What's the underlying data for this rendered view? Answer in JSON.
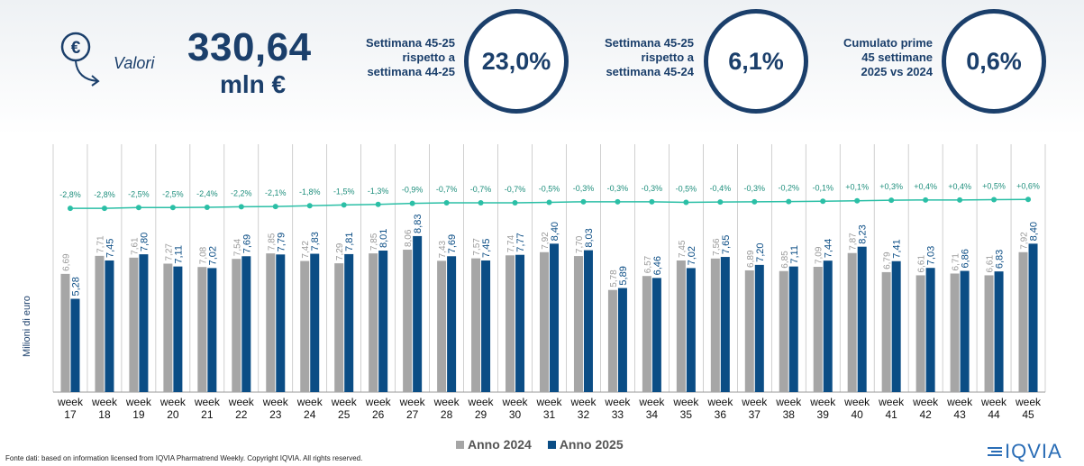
{
  "header": {
    "icon": "euro-coin-arrow-down-icon",
    "icon_glyph": "€",
    "valori_label": "Valori",
    "big_value": "330,64",
    "big_unit": "mln €"
  },
  "kpis": [
    {
      "label_lines": [
        "Settimana 45-25",
        "rispetto a",
        "settimana 44-25"
      ],
      "value": "23,0%"
    },
    {
      "label_lines": [
        "Settimana 45-25",
        "rispetto a",
        "settimana 45-24"
      ],
      "value": "6,1%"
    },
    {
      "label_lines": [
        "Cumulato prime",
        "45 settimane",
        "2025 vs 2024"
      ],
      "value": "0,6%"
    }
  ],
  "colors": {
    "anno2024": "#a6a6a6",
    "anno2025": "#0b4d85",
    "line": "#2bbfa6",
    "text_dark": "#1b3f6b"
  },
  "chart_data": {
    "type": "bar",
    "ylabel": "Milioni di euro",
    "categories": [
      "week 17",
      "week 18",
      "week 19",
      "week 20",
      "week 21",
      "week 22",
      "week 23",
      "week 24",
      "week 25",
      "week 26",
      "week 27",
      "week 28",
      "week 29",
      "week 30",
      "week 31",
      "week 32",
      "week 33",
      "week 34",
      "week 35",
      "week 36",
      "week 37",
      "week 38",
      "week 39",
      "week 40",
      "week 41",
      "week 42",
      "week 43",
      "week 44",
      "week 45"
    ],
    "series": [
      {
        "name": "Anno 2024",
        "labels": [
          "6,69",
          "7,71",
          "7,61",
          "7,27",
          "7,08",
          "7,54",
          "7,85",
          "7,42",
          "7,29",
          "7,85",
          "8,06",
          "7,43",
          "7,57",
          "7,74",
          "7,92",
          "7,70",
          "5,78",
          "6,57",
          "7,45",
          "7,56",
          "6,89",
          "6,85",
          "7,09",
          "7,87",
          "6,79",
          "6,61",
          "6,71",
          "6,61",
          "7,92"
        ],
        "values": [
          6.69,
          7.71,
          7.61,
          7.27,
          7.08,
          7.54,
          7.85,
          7.42,
          7.29,
          7.85,
          8.06,
          7.43,
          7.57,
          7.74,
          7.92,
          7.7,
          5.78,
          6.57,
          7.45,
          7.56,
          6.89,
          6.85,
          7.09,
          7.87,
          6.79,
          6.61,
          6.71,
          6.61,
          7.92
        ]
      },
      {
        "name": "Anno 2025",
        "labels": [
          "5,28",
          "7,45",
          "7,80",
          "7,11",
          "7,02",
          "7,69",
          "7,79",
          "7,83",
          "7,81",
          "8,01",
          "8,83",
          "7,69",
          "7,45",
          "7,77",
          "8,40",
          "8,03",
          "5,89",
          "6,46",
          "7,02",
          "7,65",
          "7,20",
          "7,11",
          "7,44",
          "8,23",
          "7,41",
          "7,03",
          "6,86",
          "6,83",
          "8,40"
        ],
        "values": [
          5.28,
          7.45,
          7.8,
          7.11,
          7.02,
          7.69,
          7.79,
          7.83,
          7.81,
          8.01,
          8.83,
          7.69,
          7.45,
          7.77,
          8.4,
          8.03,
          5.89,
          6.46,
          7.02,
          7.65,
          7.2,
          7.11,
          7.44,
          8.23,
          7.41,
          7.03,
          6.86,
          6.83,
          8.4
        ]
      }
    ],
    "cumulative_change": {
      "labels": [
        "-2,8%",
        "-2,8%",
        "-2,5%",
        "-2,5%",
        "-2,4%",
        "-2,2%",
        "-2,1%",
        "-1,8%",
        "-1,5%",
        "-1,3%",
        "-0,9%",
        "-0,7%",
        "-0,7%",
        "-0,7%",
        "-0,5%",
        "-0,3%",
        "-0,3%",
        "-0,3%",
        "-0,5%",
        "-0,4%",
        "-0,3%",
        "-0,2%",
        "-0,1%",
        "+0,1%",
        "+0,3%",
        "+0,4%",
        "+0,4%",
        "+0,5%",
        "+0,6%"
      ],
      "values": [
        -2.8,
        -2.8,
        -2.5,
        -2.5,
        -2.4,
        -2.2,
        -2.1,
        -1.8,
        -1.5,
        -1.3,
        -0.9,
        -0.7,
        -0.7,
        -0.7,
        -0.5,
        -0.3,
        -0.3,
        -0.3,
        -0.5,
        -0.4,
        -0.3,
        -0.2,
        -0.1,
        0.1,
        0.3,
        0.4,
        0.4,
        0.5,
        0.6
      ]
    },
    "ylim": [
      0,
      9.5
    ],
    "legend_position": "bottom"
  },
  "legend": [
    {
      "label": "Anno 2024",
      "color": "#a6a6a6"
    },
    {
      "label": "Anno 2025",
      "color": "#0b4d85"
    }
  ],
  "footer": {
    "source": "Fonte dati: based on information licensed from IQVIA Pharmatrend Weekly. Copyright IQVIA. All rights reserved.",
    "logo_text": "IQVIA"
  }
}
